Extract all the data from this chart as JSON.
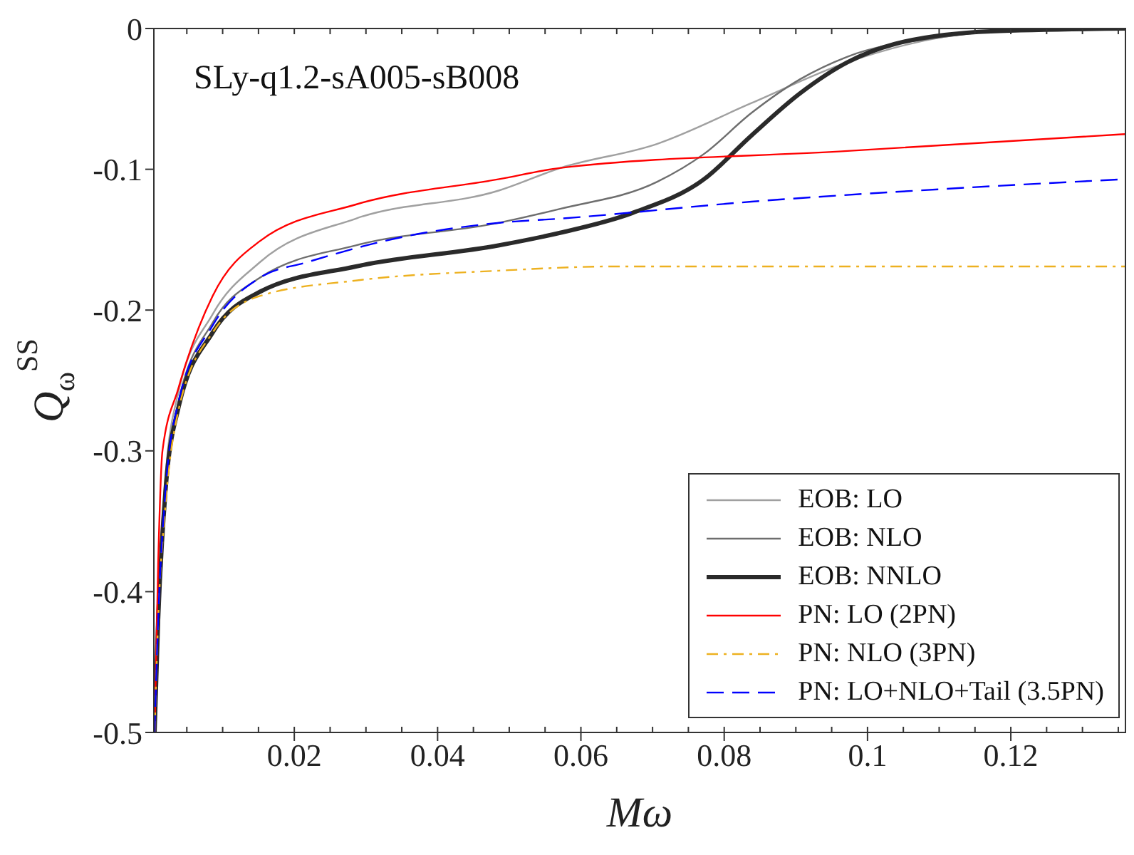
{
  "chart_data": {
    "type": "line",
    "xlabel": "Mω",
    "ylabel": "Q$_{ω}$$^{SS}$",
    "annotations": [
      "SLy-q1.2-sA005-sB008"
    ],
    "xlim": [
      0.0004,
      0.136
    ],
    "xticks": [
      0.02,
      0.04,
      0.06,
      0.08,
      0.1,
      0.12
    ],
    "ylim": [
      -0.5,
      0
    ],
    "yticks": [
      -0.5,
      -0.4,
      -0.3,
      -0.2,
      -0.1,
      0
    ],
    "legend": "bottom right",
    "marker": "none",
    "series": [
      {
        "name": "EOB: LO",
        "color": "#a0a0a0",
        "line_style": "solid",
        "x": [
          0.0005,
          0.001,
          0.002,
          0.0038,
          0.0086,
          0.0152,
          0.0286,
          0.0486,
          0.0572,
          0.0706,
          0.0838,
          0.0972,
          0.1106,
          0.1206,
          0.136
        ],
        "values": [
          -0.5,
          -0.41,
          -0.32,
          -0.259,
          -0.203,
          -0.166,
          -0.135,
          -0.115,
          -0.099,
          -0.082,
          -0.053,
          -0.024,
          -0.006,
          -0.001,
          0
        ]
      },
      {
        "name": "EOB: NLO",
        "color": "#6e6e6e",
        "line_style": "solid",
        "x": [
          0.0005,
          0.001,
          0.002,
          0.0038,
          0.0086,
          0.0152,
          0.0286,
          0.0486,
          0.0572,
          0.0706,
          0.0772,
          0.0838,
          0.0906,
          0.0972,
          0.1106,
          0.1206,
          0.136
        ],
        "values": [
          -0.5,
          -0.42,
          -0.33,
          -0.266,
          -0.209,
          -0.177,
          -0.154,
          -0.138,
          -0.128,
          -0.109,
          -0.089,
          -0.06,
          -0.036,
          -0.02,
          -0.006,
          -0.001,
          0
        ]
      },
      {
        "name": "EOB: NNLO",
        "color": "#2a2a2a",
        "line_style": "solid",
        "x": [
          0.0005,
          0.001,
          0.002,
          0.0038,
          0.0086,
          0.0152,
          0.0286,
          0.0486,
          0.0572,
          0.0672,
          0.0772,
          0.0838,
          0.0906,
          0.0972,
          0.1038,
          0.1172,
          0.136
        ],
        "values": [
          -0.5,
          -0.42,
          -0.33,
          -0.27,
          -0.216,
          -0.187,
          -0.169,
          -0.154,
          -0.145,
          -0.131,
          -0.107,
          -0.076,
          -0.046,
          -0.024,
          -0.011,
          -0.002,
          0
        ]
      },
      {
        "name": "PN: LO (2PN)",
        "color": "#ff0000",
        "line_style": "solid",
        "x": [
          0.0005,
          0.001,
          0.0016,
          0.0038,
          0.0086,
          0.0152,
          0.0286,
          0.0486,
          0.0572,
          0.0972,
          0.136
        ],
        "values": [
          -0.5,
          -0.38,
          -0.3,
          -0.256,
          -0.19,
          -0.151,
          -0.125,
          -0.107,
          -0.099,
          -0.087,
          -0.075
        ]
      },
      {
        "name": "PN: NLO (3PN)",
        "color": "#edb120",
        "line_style": "dashdot",
        "x": [
          0.0005,
          0.001,
          0.002,
          0.0038,
          0.0086,
          0.0152,
          0.0286,
          0.0486,
          0.065,
          0.1,
          0.136
        ],
        "values": [
          -0.5,
          -0.42,
          -0.34,
          -0.272,
          -0.216,
          -0.19,
          -0.179,
          -0.172,
          -0.169,
          -0.169,
          -0.169
        ]
      },
      {
        "name": "PN: LO+NLO+Tail (3.5PN)",
        "color": "#0000ff",
        "line_style": "dashed",
        "x": [
          0.0005,
          0.001,
          0.002,
          0.0038,
          0.0086,
          0.0152,
          0.0218,
          0.0352,
          0.0486,
          0.0572,
          0.0838,
          0.1106,
          0.136
        ],
        "values": [
          -0.5,
          -0.42,
          -0.33,
          -0.266,
          -0.211,
          -0.177,
          -0.166,
          -0.148,
          -0.138,
          -0.135,
          -0.123,
          -0.114,
          -0.107
        ]
      }
    ]
  }
}
